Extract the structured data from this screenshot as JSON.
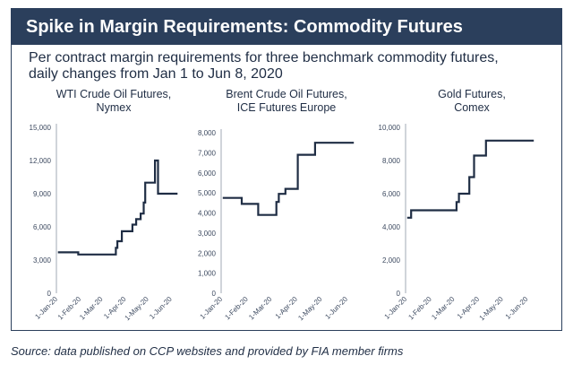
{
  "header": {
    "title": "Spike in Margin Requirements: Commodity Futures",
    "subtitle_line1": "Per contract margin requirements for three benchmark commodity futures,",
    "subtitle_line2": "daily changes from Jan 1 to Jun 8, 2020"
  },
  "footer": {
    "source": "Source: data published on CCP websites and provided by FIA member firms"
  },
  "colors": {
    "title_bar": "#2b3f5c",
    "line": "#1f2d44",
    "axis": "#8a93a3",
    "text": "#1f2d44"
  },
  "chart_data": [
    {
      "type": "line",
      "title_line1": "WTI Crude Oil Futures,",
      "title_line2": "Nymex",
      "x_ticks": [
        "1-Jan-20",
        "1-Feb-20",
        "1-Mar-20",
        "1-Apr-20",
        "1-May-20",
        "1-Jun-20"
      ],
      "x_range": [
        "2020-01-01",
        "2020-06-08"
      ],
      "y_ticks": [
        "0",
        "3,000",
        "6,000",
        "9,000",
        "12,000",
        "15,000"
      ],
      "ylim": [
        0,
        15000
      ],
      "grid": false,
      "series": [
        {
          "points": [
            [
              "2020-01-01",
              3700
            ],
            [
              "2020-01-28",
              3700
            ],
            [
              "2020-01-28",
              3500
            ],
            [
              "2020-03-18",
              3500
            ],
            [
              "2020-03-18",
              4100
            ],
            [
              "2020-03-20",
              4100
            ],
            [
              "2020-03-20",
              4700
            ],
            [
              "2020-03-26",
              4700
            ],
            [
              "2020-03-26",
              5600
            ],
            [
              "2020-04-09",
              5600
            ],
            [
              "2020-04-09",
              6200
            ],
            [
              "2020-04-14",
              6200
            ],
            [
              "2020-04-14",
              6700
            ],
            [
              "2020-04-20",
              6700
            ],
            [
              "2020-04-20",
              7200
            ],
            [
              "2020-04-24",
              7200
            ],
            [
              "2020-04-24",
              8200
            ],
            [
              "2020-04-26",
              8200
            ],
            [
              "2020-04-26",
              10000
            ],
            [
              "2020-05-09",
              10000
            ],
            [
              "2020-05-09",
              12000
            ],
            [
              "2020-05-13",
              12000
            ],
            [
              "2020-05-13",
              9000
            ],
            [
              "2020-06-08",
              9000
            ]
          ]
        }
      ]
    },
    {
      "type": "line",
      "title_line1": "Brent Crude Oil Futures,",
      "title_line2": "ICE Futures Europe",
      "x_ticks": [
        "1-Jan-20",
        "1-Feb-20",
        "1-Mar-20",
        "1-Apr-20",
        "1-May-20",
        "1-Jun-20"
      ],
      "x_range": [
        "2020-01-01",
        "2020-06-08"
      ],
      "y_ticks": [
        "0",
        "1,000",
        "2,000",
        "3,000",
        "4,000",
        "5,000",
        "6,000",
        "7,000",
        "8,000"
      ],
      "ylim": [
        0,
        8000
      ],
      "grid": false,
      "series": [
        {
          "points": [
            [
              "2020-01-01",
              4750
            ],
            [
              "2020-01-24",
              4750
            ],
            [
              "2020-01-24",
              4450
            ],
            [
              "2020-02-13",
              4450
            ],
            [
              "2020-02-13",
              3900
            ],
            [
              "2020-03-06",
              3900
            ],
            [
              "2020-03-06",
              4550
            ],
            [
              "2020-03-09",
              4550
            ],
            [
              "2020-03-09",
              4950
            ],
            [
              "2020-03-17",
              4950
            ],
            [
              "2020-03-17",
              5200
            ],
            [
              "2020-04-01",
              5200
            ],
            [
              "2020-04-01",
              6900
            ],
            [
              "2020-04-22",
              6900
            ],
            [
              "2020-04-22",
              7500
            ],
            [
              "2020-06-08",
              7500
            ]
          ]
        }
      ]
    },
    {
      "type": "line",
      "title_line1": "Gold Futures,",
      "title_line2": "Comex",
      "x_ticks": [
        "1-Jan-20",
        "1-Feb-20",
        "1-Mar-20",
        "1-Apr-20",
        "1-May-20",
        "1-Jun-20"
      ],
      "x_range": [
        "2020-01-01",
        "2020-06-08"
      ],
      "y_ticks": [
        "0",
        "2,000",
        "4,000",
        "6,000",
        "8,000",
        "10,000"
      ],
      "ylim": [
        0,
        10000
      ],
      "grid": false,
      "series": [
        {
          "points": [
            [
              "2020-01-01",
              4550
            ],
            [
              "2020-01-06",
              4550
            ],
            [
              "2020-01-06",
              5000
            ],
            [
              "2020-03-03",
              5000
            ],
            [
              "2020-03-03",
              5500
            ],
            [
              "2020-03-06",
              5500
            ],
            [
              "2020-03-06",
              6000
            ],
            [
              "2020-03-19",
              6000
            ],
            [
              "2020-03-19",
              7000
            ],
            [
              "2020-03-25",
              7000
            ],
            [
              "2020-03-25",
              8300
            ],
            [
              "2020-04-09",
              8300
            ],
            [
              "2020-04-09",
              9200
            ],
            [
              "2020-06-08",
              9200
            ]
          ]
        }
      ]
    }
  ]
}
